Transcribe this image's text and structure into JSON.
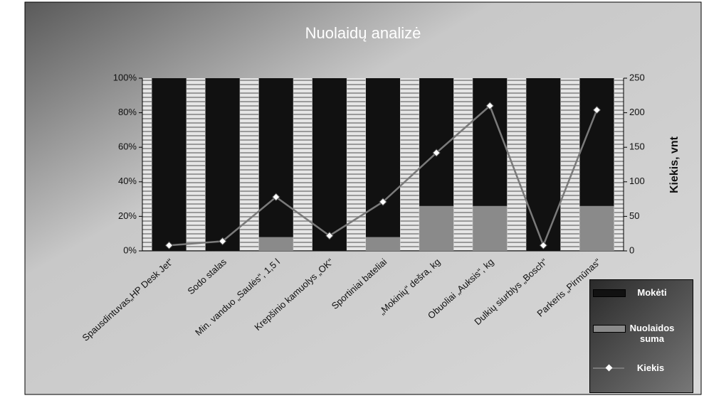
{
  "chart_data": {
    "type": "stacked-bar-line",
    "title": "Nuolaidų analizė",
    "categories": [
      "Spausdintuvas„HP Desk Jet“",
      "Sodo stalas",
      "Min. vanduo „Saulės“, 1,5 l",
      "Krepšinio kamuolys „OK“",
      "Sportiniai bateliai",
      "„Mokinių“ dešra, kg",
      "Obuoliai „Auksis“, kg",
      "Dulkių siurblys „Bosch“",
      "Parkeris „Pirmūnas“"
    ],
    "series": [
      {
        "name": "Mokėti",
        "color": "#111111",
        "values": [
          100,
          100,
          92,
          100,
          92,
          74,
          74,
          100,
          74
        ]
      },
      {
        "name": "Nuolaidos suma",
        "color": "#8a8a8a",
        "values": [
          0,
          0,
          8,
          0,
          8,
          26,
          26,
          0,
          26
        ]
      },
      {
        "name": "Kiekis",
        "color": "#7a7a7a",
        "axis": "y2",
        "values": [
          8,
          14,
          78,
          22,
          71,
          142,
          210,
          8,
          204
        ]
      }
    ],
    "ylim": [
      0,
      100
    ],
    "yticks": [
      {
        "value": 0,
        "label": "0%"
      },
      {
        "value": 20,
        "label": "20%"
      },
      {
        "value": 40,
        "label": "40%"
      },
      {
        "value": 60,
        "label": "60%"
      },
      {
        "value": 80,
        "label": "80%"
      },
      {
        "value": 100,
        "label": "100%"
      }
    ],
    "y2lim": [
      0,
      250
    ],
    "y2ticks": [
      0,
      50,
      100,
      150,
      200,
      250
    ],
    "y2label": "Kiekis, vnt",
    "legend": "bottom-right"
  }
}
